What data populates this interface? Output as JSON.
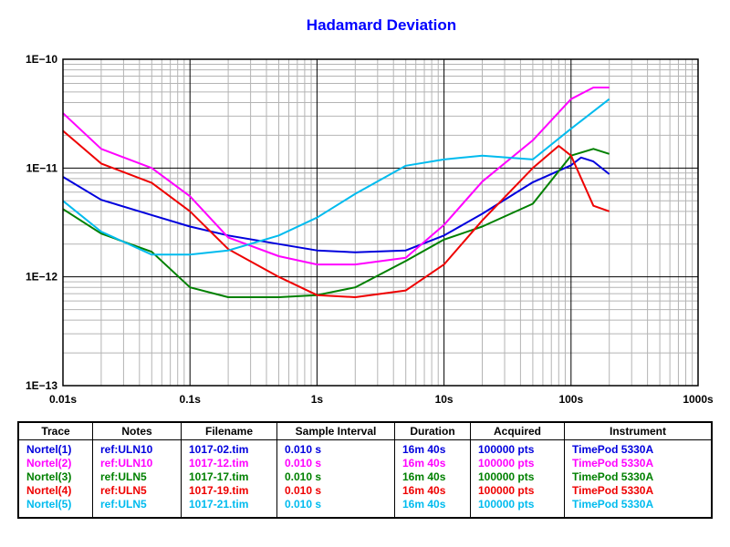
{
  "chart_data": {
    "type": "line",
    "title": "Hadamard Deviation",
    "xscale": "log",
    "yscale": "log",
    "xlim": [
      0.01,
      1000
    ],
    "ylim": [
      1e-13,
      1e-10
    ],
    "grid": true,
    "x_tick_labels": [
      "0.01s",
      "0.1s",
      "1s",
      "10s",
      "100s",
      "1000s"
    ],
    "y_tick_labels": [
      "1E−10",
      "1E−11",
      "1E−12",
      "1E−13"
    ],
    "series": [
      {
        "name": "Nortel(1)",
        "color": "#0000dd",
        "points": [
          [
            0.01,
            8.3e-12
          ],
          [
            0.02,
            5.1e-12
          ],
          [
            0.05,
            3.7e-12
          ],
          [
            0.1,
            2.9e-12
          ],
          [
            0.2,
            2.4e-12
          ],
          [
            0.5,
            2e-12
          ],
          [
            1,
            1.75e-12
          ],
          [
            2,
            1.68e-12
          ],
          [
            5,
            1.75e-12
          ],
          [
            10,
            2.4e-12
          ],
          [
            20,
            3.8e-12
          ],
          [
            50,
            7.4e-12
          ],
          [
            100,
            1.06e-11
          ],
          [
            120,
            1.25e-11
          ],
          [
            150,
            1.15e-11
          ],
          [
            200,
            8.8e-12
          ]
        ]
      },
      {
        "name": "Nortel(2)",
        "color": "#ff00ff",
        "points": [
          [
            0.01,
            3.2e-11
          ],
          [
            0.02,
            1.5e-11
          ],
          [
            0.05,
            1e-11
          ],
          [
            0.1,
            5.5e-12
          ],
          [
            0.2,
            2.3e-12
          ],
          [
            0.5,
            1.55e-12
          ],
          [
            1,
            1.3e-12
          ],
          [
            2,
            1.3e-12
          ],
          [
            5,
            1.5e-12
          ],
          [
            10,
            3e-12
          ],
          [
            20,
            7.5e-12
          ],
          [
            50,
            1.8e-11
          ],
          [
            100,
            4.3e-11
          ],
          [
            150,
            5.5e-11
          ],
          [
            200,
            5.5e-11
          ]
        ]
      },
      {
        "name": "Nortel(3)",
        "color": "#008000",
        "points": [
          [
            0.01,
            4.2e-12
          ],
          [
            0.02,
            2.5e-12
          ],
          [
            0.05,
            1.7e-12
          ],
          [
            0.1,
            8e-13
          ],
          [
            0.2,
            6.5e-13
          ],
          [
            0.5,
            6.5e-13
          ],
          [
            1,
            6.8e-13
          ],
          [
            2,
            8e-13
          ],
          [
            5,
            1.4e-12
          ],
          [
            10,
            2.2e-12
          ],
          [
            20,
            2.9e-12
          ],
          [
            50,
            4.7e-12
          ],
          [
            100,
            1.3e-11
          ],
          [
            150,
            1.5e-11
          ],
          [
            200,
            1.35e-11
          ]
        ]
      },
      {
        "name": "Nortel(4)",
        "color": "#ee0000",
        "points": [
          [
            0.01,
            2.2e-11
          ],
          [
            0.02,
            1.1e-11
          ],
          [
            0.05,
            7.3e-12
          ],
          [
            0.1,
            4e-12
          ],
          [
            0.2,
            1.8e-12
          ],
          [
            0.5,
            1e-12
          ],
          [
            1,
            6.8e-13
          ],
          [
            2,
            6.5e-13
          ],
          [
            5,
            7.5e-13
          ],
          [
            10,
            1.3e-12
          ],
          [
            20,
            3.3e-12
          ],
          [
            50,
            1e-11
          ],
          [
            80,
            1.6e-11
          ],
          [
            100,
            1.3e-11
          ],
          [
            150,
            4.5e-12
          ],
          [
            200,
            4e-12
          ]
        ]
      },
      {
        "name": "Nortel(5)",
        "color": "#00bbee",
        "points": [
          [
            0.01,
            5e-12
          ],
          [
            0.02,
            2.6e-12
          ],
          [
            0.05,
            1.6e-12
          ],
          [
            0.1,
            1.6e-12
          ],
          [
            0.2,
            1.75e-12
          ],
          [
            0.5,
            2.4e-12
          ],
          [
            1,
            3.5e-12
          ],
          [
            2,
            5.8e-12
          ],
          [
            5,
            1.05e-11
          ],
          [
            10,
            1.2e-11
          ],
          [
            20,
            1.3e-11
          ],
          [
            50,
            1.2e-11
          ],
          [
            100,
            2.3e-11
          ],
          [
            200,
            4.3e-11
          ]
        ]
      }
    ]
  },
  "table": {
    "headers": [
      "Trace",
      "Notes",
      "Filename",
      "Sample Interval",
      "Duration",
      "Acquired",
      "Instrument"
    ],
    "rows": [
      {
        "color": "#0000dd",
        "cells": [
          "Nortel(1)",
          "ref:ULN10",
          "1017-02.tim",
          "0.010 s",
          "16m 40s",
          "100000 pts",
          "TimePod 5330A"
        ]
      },
      {
        "color": "#ff00ff",
        "cells": [
          "Nortel(2)",
          "ref:ULN10",
          "1017-12.tim",
          "0.010 s",
          "16m 40s",
          "100000 pts",
          "TimePod 5330A"
        ]
      },
      {
        "color": "#008000",
        "cells": [
          "Nortel(3)",
          "ref:ULN5",
          "1017-17.tim",
          "0.010 s",
          "16m 40s",
          "100000 pts",
          "TimePod 5330A"
        ]
      },
      {
        "color": "#ee0000",
        "cells": [
          "Nortel(4)",
          "ref:ULN5",
          "1017-19.tim",
          "0.010 s",
          "16m 40s",
          "100000 pts",
          "TimePod 5330A"
        ]
      },
      {
        "color": "#00bbee",
        "cells": [
          "Nortel(5)",
          "ref:ULN5",
          "1017-21.tim",
          "0.010 s",
          "16m 40s",
          "100000 pts",
          "TimePod 5330A"
        ]
      }
    ]
  }
}
